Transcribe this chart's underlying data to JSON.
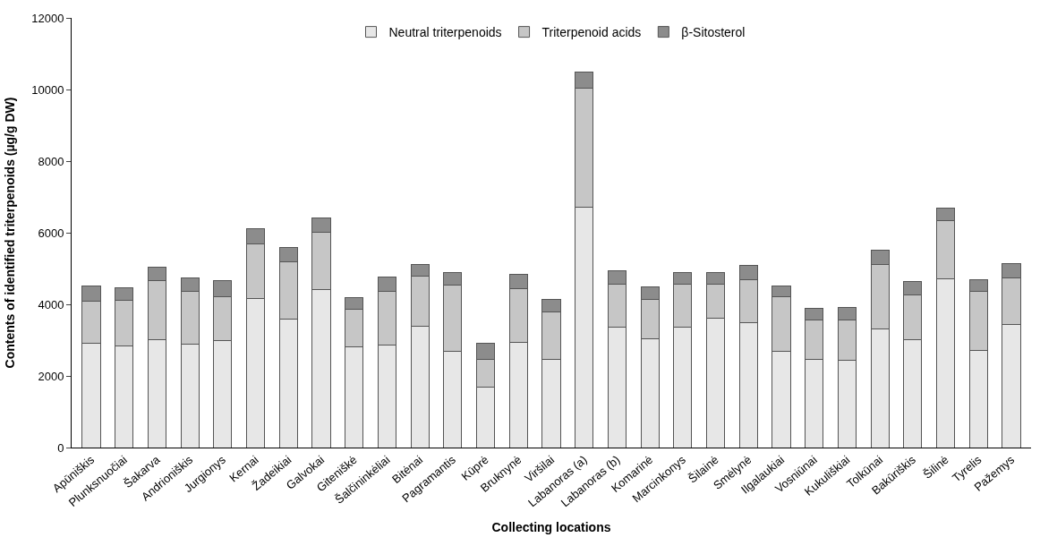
{
  "chart_data": {
    "type": "bar",
    "stacked": true,
    "xlabel": "Collecting locations",
    "ylabel": "Contents of identified triterpenoids (µg/g DW)",
    "categories": [
      "Apūniškis",
      "Plunksnuočiai",
      "Šakarva",
      "Andrioniškis",
      "Jurgionys",
      "Kernai",
      "Žadeikiai",
      "Galvokai",
      "Giteniškė",
      "Šalčininkėliai",
      "Bitėnai",
      "Pagramantis",
      "Kūprė",
      "Bruknynė",
      "Viršilai",
      "Labanoras (a)",
      "Labanoras (b)",
      "Komarinė",
      "Marcinkonys",
      "Šilainė",
      "Smėlynė",
      "Ilgalaukiai",
      "Vosniūnai",
      "Kukuliškiai",
      "Tolkūnai",
      "Bakūriškis",
      "Šilinė",
      "Tyrelis",
      "Pažemys"
    ],
    "series": [
      {
        "name": "Neutral triterpenoids",
        "color": "#e7e7e7",
        "values": [
          2920,
          2850,
          3020,
          2900,
          2980,
          4170,
          3600,
          4410,
          2810,
          2870,
          3390,
          2690,
          1700,
          2950,
          2470,
          6720,
          3360,
          3030,
          3360,
          3620,
          3490,
          2700,
          2470,
          2440,
          3310,
          3010,
          4710,
          2720,
          3430
        ]
      },
      {
        "name": "Triterpenoid acids",
        "color": "#c6c6c6",
        "values": [
          1170,
          1270,
          1650,
          1470,
          1230,
          1510,
          1600,
          1600,
          1060,
          1500,
          1410,
          1850,
          760,
          1490,
          1330,
          3320,
          1210,
          1120,
          1210,
          940,
          1200,
          1510,
          1090,
          1120,
          1800,
          1250,
          1620,
          1640,
          1320
        ]
      },
      {
        "name": "β-Sitosterol",
        "color": "#8c8c8c",
        "values": [
          430,
          340,
          360,
          380,
          460,
          430,
          380,
          410,
          320,
          400,
          310,
          360,
          460,
          400,
          330,
          460,
          370,
          340,
          330,
          320,
          400,
          310,
          320,
          350,
          410,
          390,
          350,
          340,
          400
        ]
      }
    ],
    "ylim": [
      0,
      12000
    ],
    "yticks": [
      0,
      2000,
      4000,
      6000,
      8000,
      10000,
      12000
    ],
    "legend": "top"
  }
}
